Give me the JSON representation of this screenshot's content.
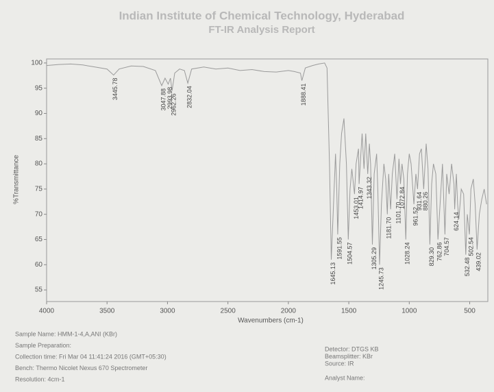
{
  "chart_data": {
    "type": "line",
    "title": "Indian Institute of Chemical Technology, Hyderabad",
    "subtitle": "FT-IR Analysis Report",
    "x_label": "Wavenumbers (cm-1)",
    "y_label": "%Transmittance",
    "x": [
      4000,
      3900,
      3800,
      3700,
      3600,
      3500,
      3445.78,
      3400,
      3300,
      3200,
      3100,
      3047.88,
      3020,
      2993.98,
      2975,
      2962.26,
      2940,
      2900,
      2860,
      2832.04,
      2800,
      2700,
      2600,
      2500,
      2400,
      2300,
      2200,
      2100,
      2000,
      1950,
      1900,
      1888.41,
      1860,
      1800,
      1750,
      1700,
      1680,
      1660,
      1645.13,
      1630,
      1610,
      1600,
      1591.55,
      1575,
      1560,
      1540,
      1520,
      1504.57,
      1490,
      1475,
      1453.01,
      1440,
      1420,
      1414.97,
      1400,
      1390,
      1374,
      1360,
      1343.32,
      1330,
      1320,
      1305.29,
      1290,
      1270,
      1260,
      1245.73,
      1230,
      1210,
      1195,
      1181.7,
      1170,
      1154,
      1140,
      1120,
      1101.7,
      1085,
      1072.84,
      1060,
      1045,
      1028.24,
      1015,
      1000,
      985,
      961.52,
      945,
      931.64,
      915,
      900,
      880.26,
      860,
      845,
      829.3,
      815,
      800,
      780,
      762.86,
      745,
      725,
      704.57,
      690,
      670,
      650,
      630,
      624.14,
      610,
      600,
      590,
      570,
      550,
      532.48,
      520,
      502.54,
      490,
      470,
      455,
      439.02,
      420,
      400,
      380,
      360
    ],
    "series": [
      {
        "color": "#9a9a9a",
        "values": [
          99.5,
          99.7,
          99.8,
          99.6,
          99.2,
          98.8,
          97.6,
          98.8,
          99.4,
          99.3,
          98.5,
          95.5,
          97,
          95.8,
          97,
          94.5,
          98,
          98.8,
          98.5,
          96,
          98.8,
          99.2,
          98.8,
          99,
          98.5,
          98.7,
          98.3,
          98.2,
          98.5,
          98.3,
          98,
          96.5,
          99,
          99.5,
          99.8,
          100,
          99,
          80,
          61,
          70,
          82,
          75,
          66,
          80,
          86,
          89,
          80,
          65,
          75,
          79,
          74,
          80,
          83,
          76,
          82,
          86,
          79,
          86,
          78,
          84,
          80,
          64,
          78,
          82,
          75,
          60,
          72,
          80,
          77,
          70,
          78,
          71,
          78,
          82,
          73,
          81,
          76,
          80,
          77,
          65,
          78,
          82,
          80,
          72,
          78,
          75,
          82,
          83,
          75,
          84,
          79,
          64,
          76,
          80,
          78,
          65,
          72,
          80,
          66,
          78,
          74,
          80,
          76,
          71,
          78,
          72,
          69,
          75,
          74,
          62,
          70,
          66,
          75,
          77,
          72,
          63,
          70,
          73,
          75,
          72
        ]
      }
    ],
    "annotations": [
      {
        "value": 3445.78,
        "label": "3445.78"
      },
      {
        "value": 3047.88,
        "label": "3047.88"
      },
      {
        "value": 2993.98,
        "label": "2993.98"
      },
      {
        "value": 2962.26,
        "label": "2962.26"
      },
      {
        "value": 2832.04,
        "label": "2832.04"
      },
      {
        "value": 1888.41,
        "label": "1888.41"
      },
      {
        "value": 1645.13,
        "label": "1645.13"
      },
      {
        "value": 1591.55,
        "label": "1591.55"
      },
      {
        "value": 1504.57,
        "label": "1504.57"
      },
      {
        "value": 1453.01,
        "label": "1453.01"
      },
      {
        "value": 1414.97,
        "label": "1414.97"
      },
      {
        "value": 1343.32,
        "label": "1343.32"
      },
      {
        "value": 1305.29,
        "label": "1305.29"
      },
      {
        "value": 1245.73,
        "label": "1245.73"
      },
      {
        "value": 1181.7,
        "label": "1181.70"
      },
      {
        "value": 1101.7,
        "label": "1101.70"
      },
      {
        "value": 1072.84,
        "label": "1072.84"
      },
      {
        "value": 1028.24,
        "label": "1028.24"
      },
      {
        "value": 961.52,
        "label": "961.52"
      },
      {
        "value": 931.64,
        "label": "931.64"
      },
      {
        "value": 880.26,
        "label": "880.26"
      },
      {
        "value": 829.3,
        "label": "829.30"
      },
      {
        "value": 762.86,
        "label": "762.86"
      },
      {
        "value": 704.57,
        "label": "704.57"
      },
      {
        "value": 624.14,
        "label": "624.14"
      },
      {
        "value": 532.48,
        "label": "532.48"
      },
      {
        "value": 502.54,
        "label": "502.54"
      },
      {
        "value": 439.02,
        "label": "439.02"
      }
    ],
    "xlim": [
      4000,
      350
    ],
    "xticks": [
      4000,
      3500,
      3000,
      2500,
      2000,
      1500,
      1000,
      500
    ],
    "ylim": [
      52.7,
      100.8
    ],
    "yticks": [
      55,
      60,
      65,
      70,
      75,
      80,
      85,
      90,
      95,
      100
    ]
  },
  "report": {
    "left": [
      "Sample Name: HMM-1-4,A,ANI (KBr)",
      "Sample Preparation:",
      "Collection time: Fri Mar 04 11:41:24 2016 (GMT+05:30)",
      "Bench: Thermo Nicolet Nexus 670 Spectrometer",
      "Resolution: 4cm-1"
    ],
    "right": [
      "Detector: DTGS KB",
      "Beamsplitter: KBr",
      "Source: IR",
      "Analyst Name:"
    ]
  }
}
